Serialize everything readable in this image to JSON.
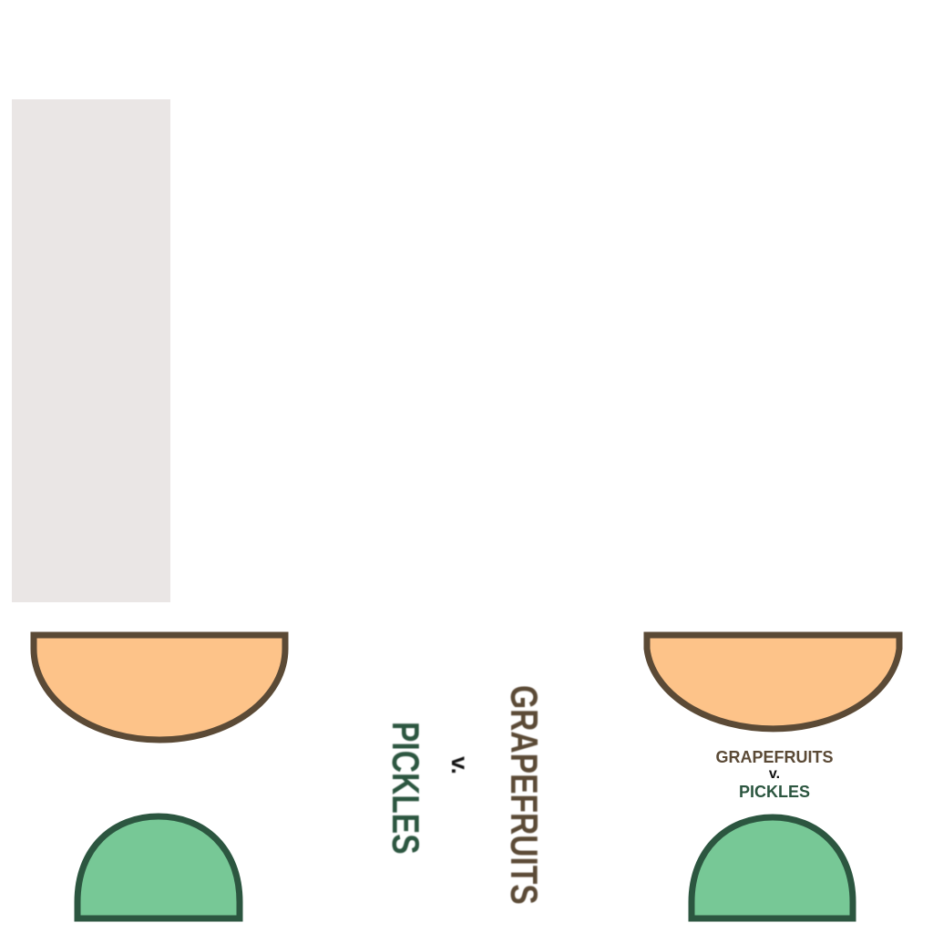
{
  "colors": {
    "grapefruit_fill": "#fdc389",
    "grapefruit_stroke": "#5b4a36",
    "pickle_fill": "#77c896",
    "pickle_stroke": "#2c5640",
    "grapefruit_text": "#5b4a36",
    "pickle_text": "#2c5640",
    "versus_text": "#111111",
    "panel_fill": "#eae6e5"
  },
  "rotated_label": {
    "top": "GRAPEFRUITS",
    "middle": "v.",
    "bottom": "PICKLES"
  },
  "right_label": {
    "top": "GRAPEFRUITS",
    "middle": "v.",
    "bottom": "PICKLES"
  }
}
